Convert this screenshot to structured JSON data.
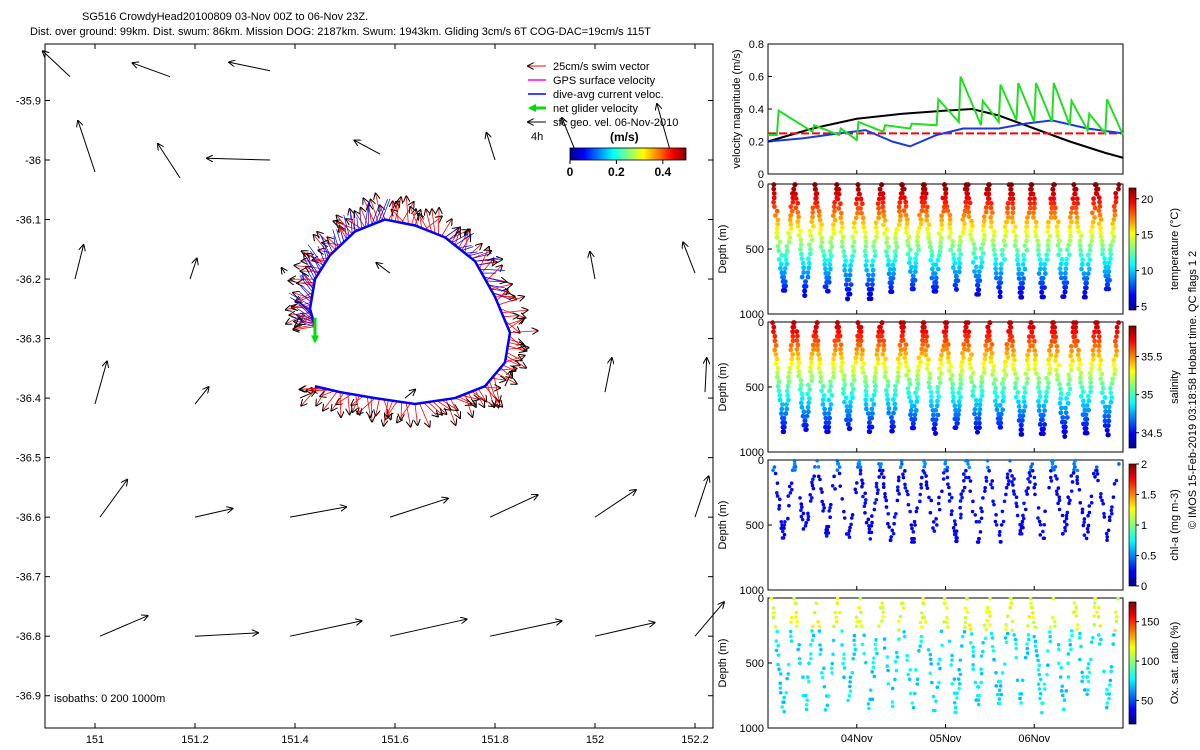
{
  "header": {
    "line1": "SG516 CrowdyHead20100809 03-Nov 00Z to 06-Nov 23Z.",
    "line2": "Dist. over ground: 99km. Dist. swum: 86km. Mission DOG: 2187km. Swum: 1943km. Gliding 3cm/s 6T COG-DAC=19cm/s 115T"
  },
  "footer_right": "© IMOS 15-Feb-2019 03:18:58 Hobart time. QC flags 1  2",
  "colors": {
    "swim": "#ff0000",
    "gps": "#ff00ff",
    "dac": "#0000ff",
    "net": "#00dd00",
    "geo": "#000000",
    "vel_black": "#000000",
    "vel_green": "#22dd22",
    "vel_blue": "#1a3adc",
    "vel_red": "#ff0000"
  },
  "chart_data": [
    {
      "id": "map",
      "type": "scatter",
      "title": "",
      "xlabel": "",
      "ylabel": "",
      "xlim": [
        150.9,
        152.3
      ],
      "ylim": [
        -36.95,
        -35.8
      ],
      "xticks": [
        "151",
        "151.2",
        "151.4",
        "151.6",
        "151.8",
        "152",
        "152.2"
      ],
      "yticks": [
        "-35.9",
        "-36",
        "-36.1",
        "-36.2",
        "-36.3",
        "-36.4",
        "-36.5",
        "-36.6",
        "-36.7",
        "-36.8",
        "-36.9"
      ],
      "legend": {
        "placement": "top-right",
        "entries": [
          "25cm/s swim vector",
          "GPS surface velocity",
          "dive-avg current veloc.",
          "net glider velocity",
          "sfc geo. vel. 06-Nov-2010"
        ]
      },
      "colorbar": {
        "title": "(m/s)",
        "ticks": [
          "0",
          "0.2",
          "0.4"
        ],
        "range": [
          0,
          0.5
        ]
      },
      "label_4h": "4h",
      "isobaths_label": "isobaths: 0   200  1000m",
      "geo_vectors": [
        [
          150.95,
          -35.86,
          -0.16,
          0.15
        ],
        [
          151.15,
          -35.86,
          -0.22,
          0.08
        ],
        [
          151.35,
          -35.85,
          -0.24,
          0.05
        ],
        [
          151.0,
          -36.02,
          -0.1,
          0.3
        ],
        [
          151.17,
          -36.03,
          -0.13,
          0.2
        ],
        [
          151.35,
          -36.0,
          -0.37,
          0.01
        ],
        [
          151.57,
          -35.99,
          -0.15,
          0.08
        ],
        [
          151.8,
          -36.0,
          -0.05,
          0.16
        ],
        [
          150.96,
          -36.2,
          0.05,
          0.2
        ],
        [
          151.19,
          -36.2,
          0.04,
          0.12
        ],
        [
          151.38,
          -36.19,
          -0.02,
          0.03
        ],
        [
          151.59,
          -36.19,
          -0.08,
          0.06
        ],
        [
          152.0,
          -36.2,
          -0.03,
          0.16
        ],
        [
          152.2,
          -36.19,
          -0.07,
          0.18
        ],
        [
          151.0,
          -36.41,
          0.07,
          0.25
        ],
        [
          151.2,
          -36.41,
          0.08,
          0.1
        ],
        [
          151.41,
          -36.4,
          0.09,
          0.04
        ],
        [
          151.62,
          -36.4,
          0.06,
          0.05
        ],
        [
          151.82,
          -36.38,
          0.04,
          0.09
        ],
        [
          152.02,
          -36.39,
          0.04,
          0.2
        ],
        [
          152.22,
          -36.39,
          0.01,
          0.2
        ],
        [
          151.01,
          -36.6,
          0.16,
          0.22
        ],
        [
          151.2,
          -36.6,
          0.22,
          0.05
        ],
        [
          151.39,
          -36.6,
          0.33,
          0.06
        ],
        [
          151.59,
          -36.6,
          0.34,
          0.11
        ],
        [
          151.79,
          -36.6,
          0.28,
          0.13
        ],
        [
          152.0,
          -36.6,
          0.24,
          0.16
        ],
        [
          152.2,
          -36.6,
          0.08,
          0.24
        ],
        [
          151.01,
          -36.8,
          0.28,
          0.12
        ],
        [
          151.2,
          -36.8,
          0.37,
          0.02
        ],
        [
          151.39,
          -36.8,
          0.42,
          0.09
        ],
        [
          151.59,
          -36.8,
          0.45,
          0.1
        ],
        [
          151.79,
          -36.8,
          0.42,
          0.09
        ],
        [
          152.0,
          -36.8,
          0.35,
          0.08
        ],
        [
          152.2,
          -36.8,
          0.17,
          0.2
        ]
      ],
      "dac_track": [
        [
          151.44,
          -36.28
        ],
        [
          151.43,
          -36.25
        ],
        [
          151.44,
          -36.2
        ],
        [
          151.47,
          -36.16
        ],
        [
          151.52,
          -36.12
        ],
        [
          151.58,
          -36.1
        ],
        [
          151.64,
          -36.11
        ],
        [
          151.7,
          -36.13
        ],
        [
          151.76,
          -36.17
        ],
        [
          151.8,
          -36.23
        ],
        [
          151.83,
          -36.29
        ],
        [
          151.82,
          -36.34
        ],
        [
          151.78,
          -36.38
        ],
        [
          151.72,
          -36.4
        ],
        [
          151.64,
          -36.41
        ],
        [
          151.56,
          -36.4
        ],
        [
          151.49,
          -36.39
        ],
        [
          151.44,
          -36.38
        ]
      ],
      "net_arrow": [
        151.44,
        -36.265,
        0.0,
        -0.14
      ]
    },
    {
      "id": "velocity",
      "type": "line",
      "title": "",
      "xlabel": "",
      "ylabel": "velocity magnitude (m/s)",
      "xlim": [
        0,
        4
      ],
      "ylim": [
        0,
        0.8
      ],
      "yticks": [
        "0",
        "0.2",
        "0.4",
        "0.6",
        "0.8"
      ],
      "series": [
        {
          "color_key": "vel_black",
          "x": [
            0,
            0.5,
            1,
            1.5,
            2,
            2.3,
            2.6,
            3,
            3.4,
            3.8,
            4
          ],
          "values": [
            0.2,
            0.28,
            0.34,
            0.37,
            0.39,
            0.4,
            0.36,
            0.28,
            0.2,
            0.13,
            0.1
          ]
        },
        {
          "color_key": "vel_red",
          "x": [
            0,
            4
          ],
          "values": [
            0.25,
            0.25
          ]
        },
        {
          "color_key": "vel_blue",
          "x": [
            0,
            0.4,
            0.8,
            1.1,
            1.4,
            1.6,
            1.9,
            2.2,
            2.6,
            2.9,
            3.2,
            3.6,
            4
          ],
          "values": [
            0.2,
            0.22,
            0.25,
            0.27,
            0.2,
            0.17,
            0.24,
            0.28,
            0.28,
            0.31,
            0.33,
            0.28,
            0.25
          ]
        },
        {
          "color_key": "vel_green",
          "x": [
            0,
            0.1,
            0.12,
            0.5,
            0.52,
            0.8,
            0.82,
            1.0,
            1.02,
            1.3,
            1.32,
            1.6,
            1.62,
            1.9,
            1.92,
            2.15,
            2.17,
            2.4,
            2.42,
            2.6,
            2.62,
            2.8,
            2.82,
            3.0,
            3.02,
            3.2,
            3.22,
            3.4,
            3.42,
            3.6,
            3.62,
            3.8,
            3.82,
            4
          ],
          "values": [
            0.24,
            0.24,
            0.39,
            0.26,
            0.3,
            0.24,
            0.28,
            0.21,
            0.32,
            0.26,
            0.3,
            0.28,
            0.31,
            0.3,
            0.46,
            0.32,
            0.6,
            0.3,
            0.45,
            0.32,
            0.55,
            0.33,
            0.56,
            0.32,
            0.56,
            0.32,
            0.56,
            0.3,
            0.45,
            0.27,
            0.37,
            0.25,
            0.46,
            0.24
          ]
        }
      ]
    },
    {
      "id": "temperature",
      "type": "scatter",
      "ylabel": "Depth (m)",
      "ylim": [
        0,
        1000
      ],
      "yticks": [
        "0",
        "500",
        "1000"
      ],
      "colorbar": {
        "label": "temperature (°C)",
        "ticks": [
          "5",
          "10",
          "15",
          "20"
        ],
        "range": [
          4.5,
          21.5
        ]
      },
      "dives": 16,
      "max_depth": 850
    },
    {
      "id": "salinity",
      "type": "scatter",
      "ylabel": "Depth (m)",
      "ylim": [
        0,
        1000
      ],
      "yticks": [
        "0",
        "500",
        "1000"
      ],
      "colorbar": {
        "label": "salinity",
        "ticks": [
          "34.5",
          "35",
          "35.5"
        ],
        "range": [
          34.3,
          35.9
        ]
      },
      "dives": 16,
      "max_depth": 850
    },
    {
      "id": "chla",
      "type": "scatter",
      "ylabel": "Depth (m)",
      "ylim": [
        0,
        1000
      ],
      "yticks": [
        "0",
        "500",
        "1000"
      ],
      "colorbar": {
        "label": "chl-a (mg m-3)",
        "ticks": [
          "0",
          "0.5",
          "1",
          "1.5",
          "2"
        ],
        "range": [
          0,
          2
        ]
      },
      "dives": 16,
      "max_depth": 600
    },
    {
      "id": "oxygen",
      "type": "scatter",
      "ylabel": "Depth (m)",
      "ylim": [
        0,
        1000
      ],
      "yticks": [
        "0",
        "500",
        "1000"
      ],
      "colorbar": {
        "label": "Ox. sat. ratio (%)",
        "ticks": [
          "50",
          "100",
          "150"
        ],
        "range": [
          20,
          175
        ]
      },
      "xticks": [
        "04Nov",
        "05Nov",
        "06Nov"
      ],
      "dives": 16,
      "max_depth": 850
    }
  ]
}
